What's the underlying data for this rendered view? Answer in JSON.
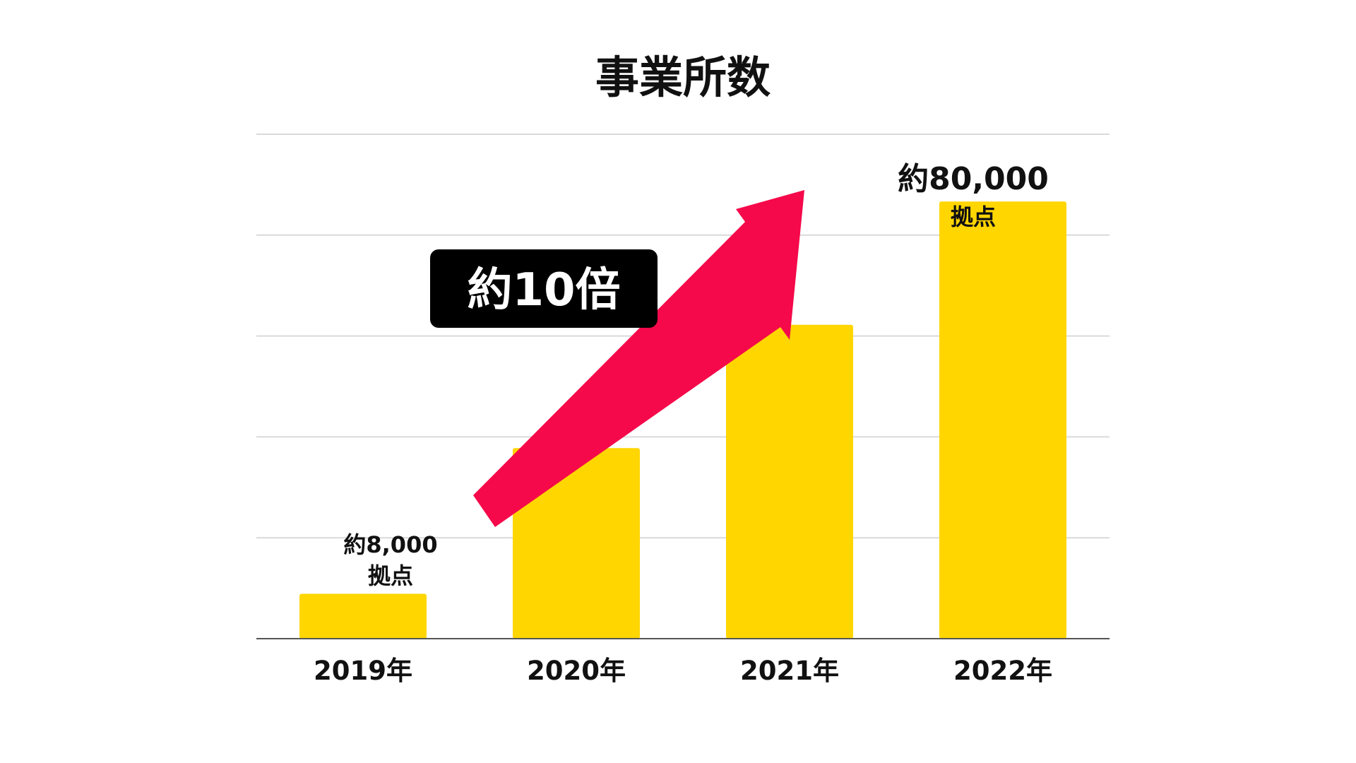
{
  "chart_data": {
    "type": "bar",
    "title": "事業所数",
    "categories": [
      "2019年",
      "2020年",
      "2021年",
      "2022年"
    ],
    "values": [
      8000,
      34000,
      56000,
      78000
    ],
    "ylim": [
      0,
      90000
    ],
    "grid": true,
    "bar_color": "#FFD600",
    "annotations": {
      "first_bar": {
        "line1": "約8,000",
        "line2": "拠点"
      },
      "last_bar": {
        "line1": "約80,000",
        "line2": "拠点"
      },
      "growth_badge": "約10倍",
      "arrow_color": "#F5094A",
      "badge_color": "#000000"
    }
  }
}
